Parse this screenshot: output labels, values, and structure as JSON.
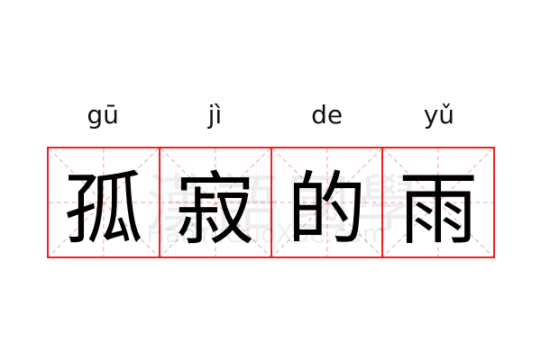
{
  "words": [
    {
      "pinyin": "gū",
      "char": "孤"
    },
    {
      "pinyin": "jì",
      "char": "寂"
    },
    {
      "pinyin": "de",
      "char": "的"
    },
    {
      "pinyin": "yǔ",
      "char": "雨"
    }
  ],
  "watermark": {
    "chinese": "漢語國學",
    "latin": "HanYuGuoXue.com"
  },
  "colors": {
    "grid_border": "#ee2222",
    "guide_lines": "#f4a0a0",
    "text": "#000000"
  }
}
